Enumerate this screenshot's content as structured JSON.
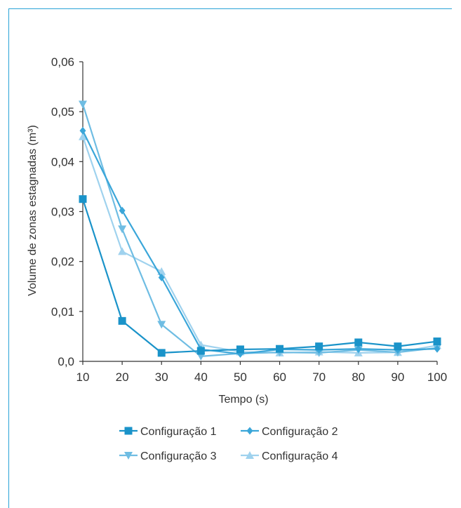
{
  "chart_data": {
    "type": "line",
    "title": "",
    "xlabel": "Tempo (s)",
    "ylabel": "Volume de zonas estagnadas (m³)",
    "x": [
      10,
      20,
      30,
      40,
      50,
      60,
      70,
      80,
      90,
      100
    ],
    "x_tick_labels": [
      "10",
      "20",
      "30",
      "40",
      "50",
      "60",
      "70",
      "80",
      "90",
      "100"
    ],
    "y_ticks": [
      0,
      0.01,
      0.02,
      0.03,
      0.04,
      0.05,
      0.06
    ],
    "y_tick_labels": [
      "0,0",
      "0,01",
      "0,02",
      "0,03",
      "0,04",
      "0,05",
      "0,06"
    ],
    "xlim": [
      10,
      100
    ],
    "ylim": [
      0,
      0.06
    ],
    "grid": false,
    "legend_position": "bottom",
    "series": [
      {
        "name": "Configuração 1",
        "marker": "square",
        "color": "#1a93c9",
        "values": [
          0.0325,
          0.0081,
          0.0017,
          0.0021,
          0.0024,
          0.0025,
          0.003,
          0.0038,
          0.003,
          0.004
        ]
      },
      {
        "name": "Configuração 2",
        "marker": "diamond",
        "color": "#3aa6d9",
        "values": [
          0.0462,
          0.0302,
          0.0168,
          0.0024,
          0.0015,
          0.0024,
          0.0023,
          0.0025,
          0.0023,
          0.0025
        ]
      },
      {
        "name": "Configuração 3",
        "marker": "triangle-down",
        "color": "#6fbde3",
        "values": [
          0.0515,
          0.0265,
          0.0074,
          0.001,
          0.0016,
          0.0018,
          0.0017,
          0.0023,
          0.0018,
          0.0027
        ]
      },
      {
        "name": "Configuração 4",
        "marker": "triangle-up",
        "color": "#9fd2ee",
        "values": [
          0.045,
          0.022,
          0.018,
          0.0033,
          0.0019,
          0.0017,
          0.0019,
          0.0017,
          0.0018,
          0.0032
        ]
      }
    ]
  }
}
